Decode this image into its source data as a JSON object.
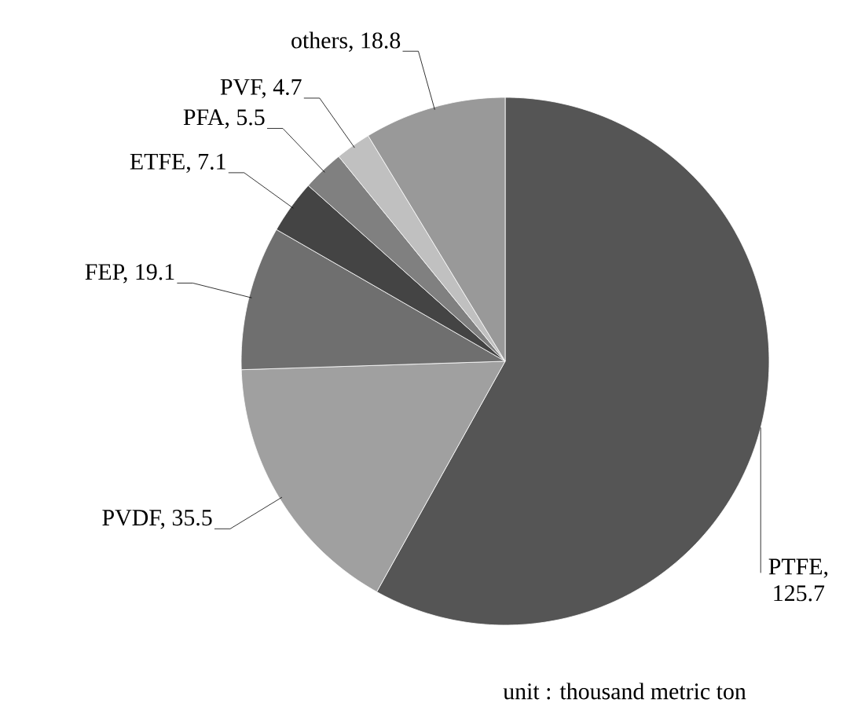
{
  "chart_data": {
    "type": "pie",
    "categories": [
      null,
      null,
      null,
      null,
      null,
      null,
      null
    ],
    "values": [
      125.7,
      35.5,
      19.1,
      7.1,
      5.5,
      4.7,
      18.8
    ],
    "colors": [
      "#555555",
      "#a0a0a0",
      "#6f6f6f",
      "#444444",
      "#808080",
      "#c0c0c0",
      "#999999"
    ],
    "value_labels": [
      "PTFE, 125.7",
      "PVDF, 35.5",
      "FEP, 19.1",
      "ETFE, 7.1",
      "PFA, 5.5",
      "PVF, 4.7",
      "others, 18.8"
    ],
    "annotations": [
      "unit : thousand metric ton"
    ]
  }
}
